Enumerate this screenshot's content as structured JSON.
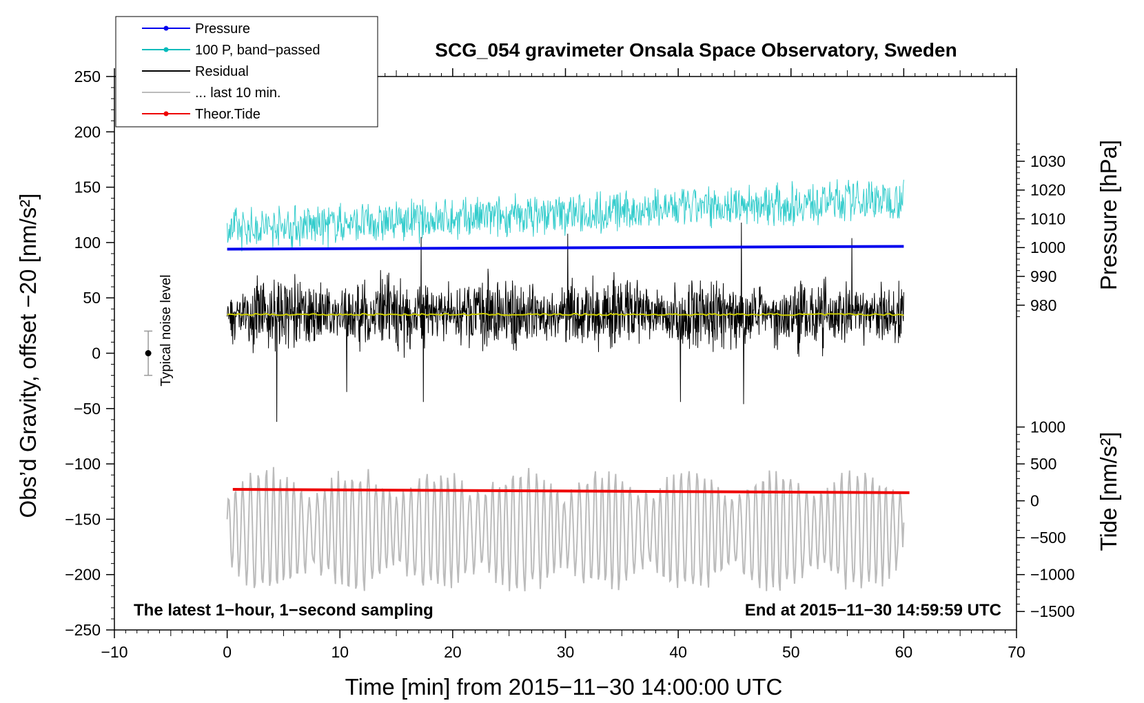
{
  "chart_data": {
    "type": "line",
    "title": "SCG_054 gravimeter Onsala Space Observatory, Sweden",
    "xlabel": "Time [min] from 2015−11−30 14:00:00 UTC",
    "ylabel_left": "Obs’d Gravity, offset −20 [nm/s²]",
    "ylabel_right_top": "Pressure [hPa]",
    "ylabel_right_bottom": "Tide [nm/s²]",
    "xlim": [
      -10,
      70
    ],
    "ylim_left": [
      -250,
      250
    ],
    "x_ticks": [
      -10,
      0,
      10,
      20,
      30,
      40,
      50,
      60,
      70
    ],
    "x_tick_labels": [
      "−10",
      "0",
      "10",
      "20",
      "30",
      "40",
      "50",
      "60",
      "70"
    ],
    "y_left_ticks": [
      250,
      200,
      150,
      100,
      50,
      0,
      -50,
      -100,
      -150,
      -200,
      -250
    ],
    "y_left_tick_labels": [
      "250",
      "200",
      "150",
      "100",
      "50",
      "0",
      "−50",
      "−100",
      "−150",
      "−200",
      "−250"
    ],
    "pressure_axis": {
      "ticks": [
        1030,
        1020,
        1010,
        1000,
        990,
        980
      ],
      "tick_labels": [
        "1030",
        "1020",
        "1010",
        "1000",
        "990",
        "980"
      ],
      "value_at_left_y0": 963.3,
      "hPa_per_left_unit": 0.3846
    },
    "tide_axis": {
      "ticks": [
        1000,
        500,
        0,
        -500,
        -1000,
        -1500
      ],
      "tick_labels": [
        "1000",
        "500",
        "0",
        "−500",
        "−1000",
        "−1500"
      ],
      "value_at_left_y0": 2000,
      "nms2_per_left_unit": 15
    },
    "legend": {
      "placement": "top-left",
      "entries": [
        {
          "label": "Pressure",
          "color": "#0000ee",
          "marker": true
        },
        {
          "label": "100 P, band−passed",
          "color": "#00bbbb",
          "marker": true
        },
        {
          "label": "Residual",
          "color": "#000000",
          "marker": false
        },
        {
          "label": "... last 10 min.",
          "color": "#bbbbbb",
          "marker": false
        },
        {
          "label": "Theor.Tide",
          "color": "#ee0000",
          "marker": true
        }
      ]
    },
    "series": [
      {
        "name": "Pressure",
        "color": "#0000ee",
        "x": [
          0,
          60
        ],
        "y": [
          94,
          96.5
        ]
      },
      {
        "name": "100 P, band−passed",
        "color": "#33cccc",
        "x_range": [
          0,
          60
        ],
        "y_mean_start": 112,
        "y_mean_end": 140,
        "y_amplitude": 18
      },
      {
        "name": "Residual",
        "color": "#000000",
        "x_range": [
          0,
          60
        ],
        "y_mean": 35,
        "y_amplitude": 22,
        "spikes": [
          [
            4.4,
            125
          ],
          [
            4.4,
            -62
          ],
          [
            17.2,
            105
          ],
          [
            17.4,
            -44
          ],
          [
            30.2,
            108
          ],
          [
            45.6,
            118
          ],
          [
            45.8,
            -46
          ],
          [
            55.4,
            104
          ],
          [
            40.2,
            -44
          ],
          [
            10.6,
            -35
          ]
        ]
      },
      {
        "name": "Filtered residual",
        "color": "#cccc00",
        "x": [
          0,
          60
        ],
        "y": [
          35,
          35
        ]
      },
      {
        "name": "... last 10 min.",
        "color": "#bbbbbb",
        "x_range": [
          0,
          60
        ],
        "y_mean": -160,
        "y_amplitude": 30
      },
      {
        "name": "Theor.Tide",
        "color": "#ee0000",
        "x": [
          0.5,
          60.5
        ],
        "y": [
          -123,
          -126
        ]
      }
    ],
    "noise_level": {
      "label": "Typical noise level",
      "x": -7,
      "y": 0,
      "error": 20
    },
    "annotation_left": "The latest 1−hour, 1−second sampling",
    "annotation_right": "End at 2015−11−30 14:59:59 UTC"
  }
}
